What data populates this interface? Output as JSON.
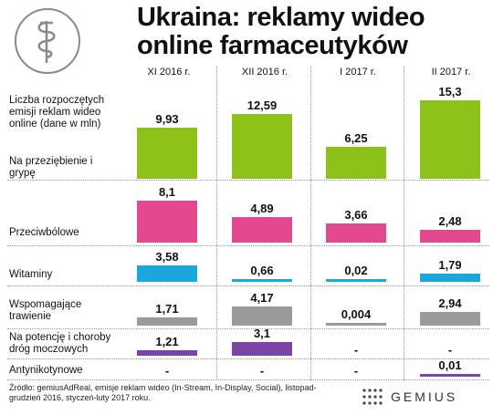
{
  "title_line1": "Ukraina: reklamy wideo",
  "title_line2": "online farmaceutyków",
  "logo_icon": "caduceus-icon",
  "months": [
    "XI 2016 r.",
    "XII 2016 r.",
    "I 2017 r.",
    "II 2017 r."
  ],
  "total_label": "Liczba rozpoczętych emisji reklam wideo online (dane w mln)",
  "categories": [
    "Na przeziębienie i grypę",
    "Przeciwbólowe",
    "Witaminy",
    "Wspomagające trawienie",
    "Na potencję i choroby dróg moczowych",
    "Antynikotynowe"
  ],
  "colors": {
    "Na przeziębienie i grypę": "#8cc21a",
    "Przeciwbólowe": "#e24a8d",
    "Witaminy": "#1aa7dd",
    "Wspomagające trawienie": "#9a9a9a",
    "Na potencję i choroby dróg moczowych": "#7b44a8",
    "Antynikotynowe": "#7b44a8"
  },
  "source_text": "Źródło: gemiusAdReal, emisje reklam wideo (In-Stream, In-Display, Social), listopad-grudzień 2016, styczeń-luty 2017 roku.",
  "brand": "GEMIUS",
  "chart_data": {
    "type": "bar",
    "categories": [
      "XI 2016 r.",
      "XII 2016 r.",
      "I 2017 r.",
      "II 2017 r."
    ],
    "series": [
      {
        "name": "Na przeziębienie i grypę",
        "values": [
          9.93,
          12.59,
          6.25,
          15.3
        ],
        "labels": [
          "9,93",
          "12,59",
          "6,25",
          "15,3"
        ]
      },
      {
        "name": "Przeciwbólowe",
        "values": [
          8.1,
          4.89,
          3.66,
          2.48
        ],
        "labels": [
          "8,1",
          "4,89",
          "3,66",
          "2,48"
        ]
      },
      {
        "name": "Witaminy",
        "values": [
          3.58,
          0.66,
          0.02,
          1.79
        ],
        "labels": [
          "3,58",
          "0,66",
          "0,02",
          "1,79"
        ]
      },
      {
        "name": "Wspomagające trawienie",
        "values": [
          1.71,
          4.17,
          0.004,
          2.94
        ],
        "labels": [
          "1,71",
          "4,17",
          "0,004",
          "2,94"
        ]
      },
      {
        "name": "Na potencję i choroby dróg moczowych",
        "values": [
          1.21,
          3.1,
          null,
          null
        ],
        "labels": [
          "1,21",
          "3,1",
          "-",
          "-"
        ]
      },
      {
        "name": "Antynikotynowe",
        "values": [
          null,
          null,
          null,
          0.01
        ],
        "labels": [
          "-",
          "-",
          "-",
          "0,01"
        ]
      }
    ]
  }
}
